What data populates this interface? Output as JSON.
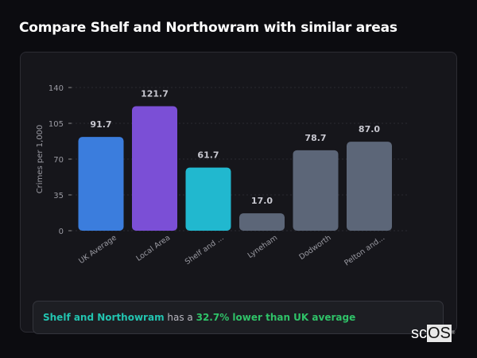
{
  "title": "Compare Shelf and Northowram with similar areas",
  "chart_data": {
    "type": "bar",
    "categories": [
      "UK Average",
      "Local Area",
      "Shelf and ...",
      "Lyneham",
      "Dodworth",
      "Pelton and..."
    ],
    "values": [
      91.7,
      121.7,
      61.7,
      17.0,
      78.7,
      87.0
    ],
    "data_labels": [
      "91.7",
      "121.7",
      "61.7",
      "17.0",
      "78.7",
      "87.0"
    ],
    "colors": [
      "#3b7ddd",
      "#7b4fd6",
      "#21b8cf",
      "#5c6678",
      "#5c6678",
      "#5c6678"
    ],
    "ylabel": "Crimes per 1,000",
    "xlabel": "",
    "ylim": [
      0,
      140
    ],
    "yticks": [
      0,
      35,
      70,
      105,
      140
    ],
    "grid": true
  },
  "summary": {
    "area": "Shelf and Northowram",
    "middle": " has a ",
    "comparison": "32.7% lower than UK average"
  },
  "logo": {
    "prefix": "sc",
    "highlight": "OS",
    "mark": "®"
  }
}
